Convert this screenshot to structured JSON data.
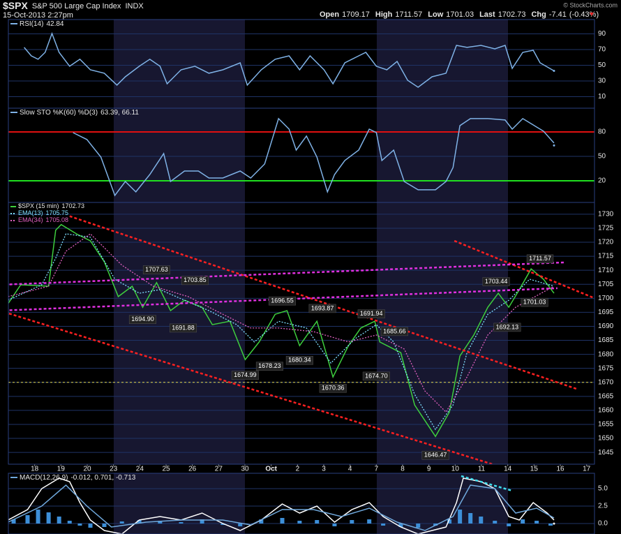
{
  "header": {
    "symbol": "$SPX",
    "name": "S&P 500 Large Cap Index",
    "exchange": "INDX",
    "timestamp": "15-Oct-2013 2:27pm",
    "quote": [
      {
        "label": "Open",
        "value": 1709.17
      },
      {
        "label": "High",
        "value": 1711.57
      },
      {
        "label": "Low",
        "value": 1701.03
      },
      {
        "label": "Last",
        "value": 1702.73
      },
      {
        "label": "Chg",
        "value": -7.41
      }
    ],
    "change_pct": {
      "value": -0.43,
      "label": "(-0.43%)"
    },
    "credit": "© StockCharts.com"
  },
  "chart_data": [
    {
      "type": "line",
      "indicator": "RSI(14)",
      "readout": 42.84,
      "xlim": [
        -1.0,
        21.3
      ],
      "ylim": [
        -4.7,
        108.2
      ],
      "yticks": [
        10,
        30,
        50,
        70,
        90
      ],
      "series": [
        {
          "color": "#7fb2e6",
          "x": [
            -0.4,
            -0.13,
            0.13,
            0.4,
            0.66,
            0.93,
            1.33,
            1.72,
            2.12,
            2.65,
            3.13,
            3.45,
            3.98,
            4.38,
            4.77,
            5.04,
            5.57,
            6.1,
            6.63,
            7.16,
            7.82,
            8.09,
            8.62,
            9.15,
            9.68,
            10.08,
            10.48,
            11.01,
            11.35,
            11.8,
            12.33,
            12.6,
            13.0,
            13.4,
            13.79,
            14.19,
            14.59,
            15.12,
            15.65,
            16.05,
            16.45,
            16.98,
            17.51,
            17.9,
            18.17,
            18.57,
            18.97,
            19.23,
            19.76
          ],
          "values": [
            72.7,
            62,
            57.6,
            66.4,
            90.4,
            66.4,
            48.7,
            57.6,
            44.2,
            39.8,
            24.7,
            35.3,
            48.7,
            57.6,
            48.7,
            26.4,
            44.2,
            48.7,
            39.8,
            44.2,
            53.1,
            24.7,
            44.2,
            57.6,
            62,
            44.2,
            62,
            44.2,
            26.4,
            53.1,
            62,
            66.4,
            48.7,
            44.2,
            54.9,
            30.9,
            22,
            35.3,
            39.8,
            75.3,
            72.7,
            75.3,
            70.9,
            75.3,
            46,
            66.4,
            69.1,
            53.1,
            42.84
          ]
        }
      ]
    },
    {
      "type": "line",
      "indicator": "Slow STO %K(60) %D(3)",
      "readout": {
        "value": 63.39,
        "label": "63.39, 66.11"
      },
      "xlim": [
        -1.0,
        21.3
      ],
      "ylim": [
        -6.6,
        109.1
      ],
      "yticks": [
        20,
        50,
        80
      ],
      "reference_lines": [
        {
          "value": 80,
          "color": "#e01010"
        },
        {
          "value": 20,
          "color": "#20e020"
        }
      ],
      "series": [
        {
          "color": "#7fb2e6",
          "x": [
            1.46,
            1.99,
            2.52,
            3.05,
            3.45,
            3.85,
            4.38,
            4.91,
            5.17,
            5.7,
            6.23,
            6.63,
            7.16,
            7.82,
            8.22,
            8.75,
            9.28,
            9.68,
            9.95,
            10.34,
            10.74,
            11.14,
            11.41,
            11.8,
            12.33,
            12.73,
            13.0,
            13.21,
            13.66,
            14.06,
            14.59,
            15.25,
            15.65,
            15.92,
            16.18,
            16.58,
            17.24,
            17.9,
            18.17,
            18.57,
            19.1,
            19.36,
            19.76
          ],
          "values": [
            79.1,
            70.6,
            49.1,
            2,
            19.1,
            6.3,
            27.7,
            53.4,
            19.1,
            32,
            32,
            23.4,
            23.4,
            32,
            23.4,
            40.6,
            96.3,
            83.4,
            57.7,
            74.9,
            49.1,
            6.3,
            27.7,
            44.9,
            57.7,
            83.4,
            79.1,
            44.9,
            57.7,
            19.1,
            8.9,
            8.9,
            19.1,
            36.3,
            87.7,
            96.3,
            96.3,
            94.6,
            83.4,
            96.3,
            86,
            80.9,
            66.3
          ]
        }
      ]
    },
    {
      "type": "line",
      "xlim": [
        -1.0,
        21.3
      ],
      "ylim": [
        1640.8,
        1734.2
      ],
      "yticks": [
        1645,
        1650,
        1655,
        1660,
        1665,
        1670,
        1675,
        1680,
        1685,
        1690,
        1695,
        1700,
        1705,
        1710,
        1715,
        1720,
        1725,
        1730
      ],
      "xticks": [
        {
          "value": 0,
          "label": "18"
        },
        {
          "value": 1,
          "label": "19"
        },
        {
          "value": 2,
          "label": "20"
        },
        {
          "value": 3,
          "label": "23"
        },
        {
          "value": 4,
          "label": "24"
        },
        {
          "value": 5,
          "label": "25"
        },
        {
          "value": 6,
          "label": "26"
        },
        {
          "value": 7,
          "label": "27"
        },
        {
          "value": 8,
          "label": "30"
        },
        {
          "value": 9,
          "label": "Oct"
        },
        {
          "value": 10,
          "label": "2"
        },
        {
          "value": 11,
          "label": "3"
        },
        {
          "value": 12,
          "label": "4"
        },
        {
          "value": 13,
          "label": "7"
        },
        {
          "value": 14,
          "label": "8"
        },
        {
          "value": 15,
          "label": "9"
        },
        {
          "value": 16,
          "label": "10"
        },
        {
          "value": 17,
          "label": "11"
        },
        {
          "value": 18,
          "label": "14"
        },
        {
          "value": 19,
          "label": "15"
        },
        {
          "value": 20,
          "label": "16"
        },
        {
          "value": 21,
          "label": "17"
        }
      ],
      "series": [
        {
          "name": "$SPX (15 min)",
          "last": 1702.73,
          "color": "#3ecf3e",
          "legend_color": "#e8e8e8",
          "x": [
            -1.01,
            -0.53,
            0.53,
            0.8,
            1.01,
            1.59,
            2.12,
            2.65,
            3.18,
            3.71,
            4.11,
            4.64,
            5.17,
            5.7,
            6.37,
            6.76,
            7.43,
            8.01,
            8.54,
            9.15,
            9.6,
            10.08,
            10.74,
            11.35,
            11.94,
            12.41,
            12.94,
            13.13,
            13.93,
            14.46,
            15.25,
            15.78,
            16.18,
            16.71,
            17.24,
            17.64,
            18.04,
            18.44,
            18.89,
            19.36,
            19.76
          ],
          "values": [
            1698.1,
            1704.8,
            1704.3,
            1724.3,
            1726.3,
            1723.0,
            1720.5,
            1713.0,
            1700.6,
            1704.3,
            1696.8,
            1705.6,
            1695.6,
            1699.3,
            1696.8,
            1690.6,
            1691.8,
            1678.1,
            1684.4,
            1694.3,
            1695.6,
            1683.1,
            1691.8,
            1671.9,
            1683.1,
            1689.4,
            1691.8,
            1684.4,
            1680.6,
            1661.9,
            1650.7,
            1659.4,
            1679.4,
            1686.9,
            1696.8,
            1701.8,
            1696.8,
            1703.1,
            1710.5,
            1706.8,
            1701.8
          ]
        },
        {
          "name": "EMA(13)",
          "last": 1705.75,
          "color": "#7fe0ff",
          "dash": "2 2",
          "x": [
            -1.01,
            0.27,
            0.8,
            1.19,
            2.12,
            3.05,
            3.98,
            4.77,
            5.7,
            6.63,
            7.69,
            8.36,
            9.28,
            10.34,
            11.27,
            12.2,
            13.0,
            13.66,
            14.46,
            15.25,
            15.92,
            16.45,
            17.24,
            18.04,
            18.83,
            19.76
          ],
          "values": [
            1699.3,
            1704.8,
            1714.3,
            1723,
            1721.8,
            1706.8,
            1701.8,
            1703.1,
            1699.3,
            1695.6,
            1690.6,
            1684.4,
            1691.8,
            1689.4,
            1676.9,
            1685.6,
            1690.6,
            1684.4,
            1665.7,
            1653.2,
            1661.9,
            1680.6,
            1694.3,
            1699.3,
            1706.8,
            1704.3
          ]
        },
        {
          "name": "EMA(34)",
          "last": 1705.08,
          "color": "#e060c0",
          "dash": "2 2",
          "x": [
            -1.01,
            0.53,
            1.19,
            2.12,
            3.32,
            4.51,
            5.84,
            7.16,
            8.22,
            9.28,
            10.61,
            11.94,
            13.0,
            14.06,
            14.85,
            15.65,
            16.45,
            17.24,
            18.3,
            19.76
          ],
          "values": [
            1700.6,
            1704.3,
            1716.8,
            1723,
            1711.8,
            1704.3,
            1700.6,
            1694.3,
            1689.4,
            1689.4,
            1688.1,
            1684.4,
            1686.9,
            1681.9,
            1666.9,
            1659.4,
            1671.9,
            1686.9,
            1696.8,
            1704.3
          ]
        }
      ],
      "trendlines": [
        {
          "color": "#ff2020",
          "x": [
            1.33,
            20.61
          ],
          "values": [
            1729.3,
            1667.7
          ]
        },
        {
          "color": "#ff2020",
          "x": [
            -1.33,
            20.42
          ],
          "values": [
            1695.6,
            1632.0
          ]
        },
        {
          "color": "#ff2020",
          "x": [
            15.97,
            22.15
          ],
          "values": [
            1720.5,
            1696.8
          ]
        },
        {
          "color": "#e030e0",
          "x": [
            -1.33,
            20.16
          ],
          "values": [
            1704.8,
            1712.8
          ]
        },
        {
          "color": "#e030e0",
          "x": [
            -1.33,
            19.89
          ],
          "values": [
            1695.6,
            1703.6
          ]
        }
      ],
      "levels": [
        {
          "value": 1670,
          "color": "#e6d84a"
        }
      ],
      "annotations": [
        {
          "x": 4.64,
          "value": 1707.63
        },
        {
          "x": 4.11,
          "value": 1694.9,
          "label": "1694.90"
        },
        {
          "x": 6.1,
          "value": 1703.85
        },
        {
          "x": 5.65,
          "value": 1691.88
        },
        {
          "x": 8.01,
          "value": 1674.99
        },
        {
          "x": 8.94,
          "value": 1678.23
        },
        {
          "x": 10.08,
          "value": 1680.34
        },
        {
          "x": 9.42,
          "value": 1696.55
        },
        {
          "x": 10.95,
          "value": 1693.87
        },
        {
          "x": 11.35,
          "value": 1670.36
        },
        {
          "x": 12.81,
          "value": 1691.94
        },
        {
          "x": 13.69,
          "value": 1685.66
        },
        {
          "x": 13.0,
          "value": 1674.7,
          "label": "1674.70"
        },
        {
          "x": 15.25,
          "value": 1646.47
        },
        {
          "x": 17.56,
          "value": 1703.44
        },
        {
          "x": 17.98,
          "value": 1692.13
        },
        {
          "x": 19.23,
          "value": 1711.57
        },
        {
          "x": 19.02,
          "value": 1701.03
        }
      ]
    },
    {
      "type": "line",
      "indicator": "MACD(12,26,9)",
      "readout": {
        "value": -0.012,
        "label": "-0.012, 0.701, -0.713"
      },
      "xlim": [
        -1.0,
        21.3
      ],
      "ylim": [
        -1.5,
        7.2
      ],
      "yticks": [
        {
          "value": 0,
          "label": "0.0"
        },
        2.5,
        {
          "value": 5,
          "label": "5.0"
        }
      ],
      "series": [
        {
          "style": "bar",
          "color": "#3d8fd8",
          "x": [
            -0.8,
            -0.27,
            0.13,
            0.53,
            0.93,
            1.33,
            1.72,
            2.12,
            2.65,
            3.32,
            3.98,
            4.77,
            5.57,
            6.37,
            7.16,
            7.82,
            8.62,
            9.42,
            10.08,
            10.74,
            11.41,
            12.07,
            12.73,
            13.26,
            13.93,
            14.59,
            15.25,
            15.78,
            16.18,
            16.58,
            16.98,
            17.51,
            18.04,
            18.57,
            19.1,
            19.63
          ],
          "values": [
            0.6,
            1.2,
            2.0,
            1.6,
            1.0,
            0.4,
            -0.3,
            -0.6,
            -0.5,
            0.3,
            0.5,
            0.4,
            0.2,
            0.6,
            -0.2,
            -0.4,
            0.6,
            0.8,
            0.4,
            0.5,
            -0.4,
            0.5,
            0.6,
            -0.3,
            -0.5,
            -0.6,
            -0.3,
            0.6,
            2.0,
            1.5,
            1.0,
            0.4,
            -0.4,
            0.6,
            0.4,
            -0.3
          ]
        },
        {
          "color": "#ffffff",
          "x": [
            -1.01,
            -0.27,
            0.27,
            0.93,
            1.33,
            1.72,
            2.12,
            2.65,
            3.32,
            3.98,
            4.77,
            5.57,
            6.37,
            7.16,
            7.82,
            8.62,
            9.42,
            10.08,
            10.74,
            11.41,
            12.07,
            12.73,
            13.26,
            13.93,
            14.59,
            15.65,
            16.05,
            16.31,
            16.98,
            17.51,
            18.04,
            18.44,
            18.97,
            19.5,
            19.76
          ],
          "values": [
            0.5,
            2,
            5,
            6.5,
            6,
            3,
            0.5,
            -1,
            -1.5,
            0.5,
            1,
            0.5,
            1.5,
            0,
            -1,
            0.5,
            2.8,
            1.5,
            2.5,
            0.2,
            2,
            3,
            1,
            -0.5,
            -1.5,
            -0.5,
            3,
            6.5,
            6,
            5,
            1,
            0.5,
            3,
            1.5,
            0.5
          ]
        },
        {
          "color": "#6fa8dc",
          "x": [
            -1.01,
            0.27,
            1.19,
            1.99,
            2.92,
            4.24,
            5.57,
            7.16,
            8.22,
            9.42,
            10.61,
            11.67,
            12.73,
            13.79,
            14.85,
            15.92,
            16.58,
            17.51,
            18.3,
            19.1,
            19.76
          ],
          "values": [
            0.2,
            2.5,
            5.5,
            2.5,
            -0.5,
            0.2,
            0.5,
            0.5,
            -0.2,
            2,
            2,
            1,
            2.2,
            0.2,
            -1,
            1,
            5.5,
            5,
            1.5,
            2.2,
            0.8
          ]
        }
      ],
      "trendlines": [
        {
          "color": "#40e0f0",
          "x": [
            16.23,
            18.17
          ],
          "values": [
            6.8,
            4.7
          ]
        }
      ]
    }
  ]
}
